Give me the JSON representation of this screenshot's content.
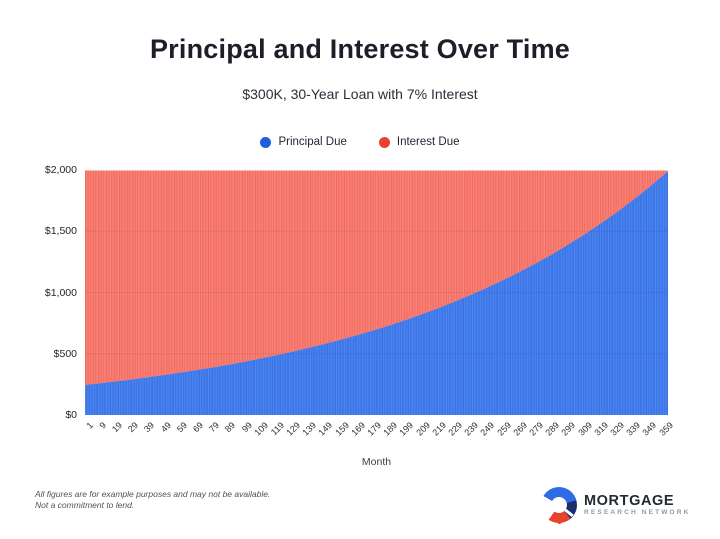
{
  "header": {
    "title": "Principal and Interest Over Time",
    "subtitle": "$300K, 30-Year Loan with 7% Interest"
  },
  "legend": {
    "items": [
      {
        "label": "Principal Due",
        "color": "#1f5fe0"
      },
      {
        "label": "Interest Due",
        "color": "#e8432f"
      }
    ]
  },
  "chart_data": {
    "type": "bar",
    "stacked": true,
    "title": "Principal and Interest Over Time",
    "subtitle": "$300K, 30-Year Loan with 7% Interest",
    "xlabel": "Month",
    "ylabel": "",
    "ylim": [
      0,
      2000
    ],
    "grid": "faint-horizontal",
    "legend_position": "top-center",
    "months_total": 360,
    "monthly_payment": 1995.91,
    "y_ticks": [
      {
        "value": 0,
        "label": "$0"
      },
      {
        "value": 500,
        "label": "$500"
      },
      {
        "value": 1000,
        "label": "$1,000"
      },
      {
        "value": 1500,
        "label": "$1,500"
      },
      {
        "value": 2000,
        "label": "$2,000"
      }
    ],
    "x_tick_months": [
      1,
      9,
      19,
      29,
      39,
      49,
      59,
      69,
      79,
      89,
      99,
      109,
      119,
      129,
      139,
      149,
      159,
      169,
      179,
      189,
      199,
      209,
      219,
      229,
      239,
      249,
      259,
      269,
      279,
      289,
      299,
      309,
      319,
      329,
      339,
      349,
      359
    ],
    "sample_months": [
      1,
      9,
      19,
      29,
      39,
      49,
      59,
      69,
      79,
      89,
      99,
      109,
      119,
      129,
      139,
      149,
      159,
      169,
      179,
      189,
      199,
      209,
      219,
      229,
      239,
      249,
      259,
      269,
      279,
      289,
      299,
      309,
      319,
      329,
      339,
      349,
      359,
      360
    ],
    "series": [
      {
        "name": "Principal Due",
        "bar_color": "#4d87f2",
        "stripe_color": "#2f66d9",
        "values": [
          245.9,
          257.6,
          273.1,
          289.4,
          306.7,
          325.1,
          344.6,
          365.2,
          387.1,
          410.3,
          434.8,
          460.9,
          488.4,
          517.7,
          548.7,
          581.6,
          616.4,
          653.3,
          692.4,
          733.9,
          777.8,
          824.4,
          873.7,
          926.1,
          981.5,
          1040.3,
          1102.6,
          1168.6,
          1238.6,
          1312.7,
          1391.4,
          1474.7,
          1563.0,
          1656.6,
          1755.8,
          1860.9,
          1972.3,
          1983.8
        ]
      },
      {
        "name": "Interest Due",
        "bar_color": "#f4695e",
        "stripe_color": "#f9958a",
        "values": [
          1750.0,
          1738.3,
          1722.8,
          1706.5,
          1689.2,
          1670.8,
          1651.3,
          1630.7,
          1608.8,
          1585.6,
          1561.1,
          1535.0,
          1507.5,
          1478.2,
          1447.2,
          1414.3,
          1379.5,
          1342.6,
          1303.5,
          1262.0,
          1218.1,
          1171.5,
          1122.2,
          1069.8,
          1014.4,
          955.6,
          893.3,
          827.3,
          757.3,
          683.2,
          604.5,
          521.2,
          432.9,
          339.3,
          240.1,
          135.0,
          23.6,
          12.1
        ]
      }
    ]
  },
  "footer": {
    "line1": "All figures are for example purposes and may not be available.",
    "line2": "Not a commitment to lend."
  },
  "logo": {
    "name": "MORTGAGE",
    "tagline": "RESEARCH NETWORK",
    "colors": {
      "blue": "#2e6ce4",
      "navy": "#1b2f6e",
      "red": "#e8432f"
    }
  }
}
